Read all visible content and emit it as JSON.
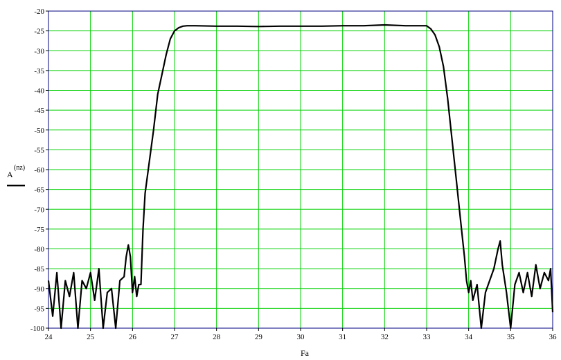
{
  "chart_data": {
    "type": "line",
    "title": "",
    "xlabel": "Fa",
    "ylabel": "A",
    "ylabel_superscript": "(nz)",
    "xlim": [
      24,
      36
    ],
    "ylim": [
      -100,
      -20
    ],
    "xticks": [
      "24",
      "25",
      "26",
      "27",
      "28",
      "29",
      "30",
      "31",
      "32",
      "33",
      "34",
      "35",
      "36"
    ],
    "yticks": [
      "-20",
      "-25",
      "-30",
      "-35",
      "-40",
      "-45",
      "-50",
      "-55",
      "-60",
      "-65",
      "-70",
      "-75",
      "-80",
      "-85",
      "-90",
      "-95",
      "-100"
    ],
    "grid": true,
    "grid_color": "#00d000",
    "frame_color": "#000080",
    "series": [
      {
        "color": "#000000",
        "x": [
          24.0,
          24.1,
          24.2,
          24.3,
          24.4,
          24.5,
          24.6,
          24.7,
          24.8,
          24.9,
          25.0,
          25.1,
          25.2,
          25.3,
          25.4,
          25.5,
          25.6,
          25.7,
          25.8,
          25.85,
          25.9,
          25.95,
          26.0,
          26.05,
          26.1,
          26.15,
          26.2,
          26.25,
          26.3,
          26.4,
          26.5,
          26.6,
          26.7,
          26.8,
          26.9,
          27.0,
          27.1,
          27.2,
          27.3,
          27.5,
          28.0,
          28.5,
          29.0,
          29.5,
          30.0,
          30.5,
          31.0,
          31.5,
          32.0,
          32.5,
          33.0,
          33.1,
          33.2,
          33.3,
          33.4,
          33.5,
          33.6,
          33.7,
          33.8,
          33.9,
          33.95,
          34.0,
          34.05,
          34.1,
          34.2,
          34.3,
          34.4,
          34.5,
          34.6,
          34.7,
          34.75,
          34.8,
          34.9,
          35.0,
          35.1,
          35.2,
          35.3,
          35.4,
          35.5,
          35.6,
          35.7,
          35.8,
          35.9,
          35.95,
          36.0
        ],
        "y": [
          -88,
          -97,
          -86,
          -100,
          -88,
          -92,
          -86,
          -100,
          -88,
          -90,
          -86,
          -93,
          -85,
          -100,
          -91,
          -90,
          -100,
          -88,
          -87,
          -82,
          -79,
          -82,
          -91,
          -87,
          -92,
          -89,
          -89,
          -75,
          -66,
          -58,
          -50,
          -41,
          -36,
          -31,
          -27,
          -25,
          -24.2,
          -23.8,
          -23.7,
          -23.7,
          -23.8,
          -23.8,
          -23.9,
          -23.8,
          -23.8,
          -23.8,
          -23.7,
          -23.7,
          -23.5,
          -23.7,
          -23.7,
          -24.5,
          -26,
          -29,
          -34,
          -42,
          -52,
          -62,
          -72,
          -82,
          -88,
          -91,
          -88,
          -93,
          -89,
          -100,
          -91,
          -88,
          -85,
          -80,
          -78,
          -84,
          -91,
          -100,
          -89,
          -86,
          -91,
          -86,
          -92,
          -84,
          -90,
          -86,
          -88,
          -85,
          -96
        ]
      }
    ]
  }
}
